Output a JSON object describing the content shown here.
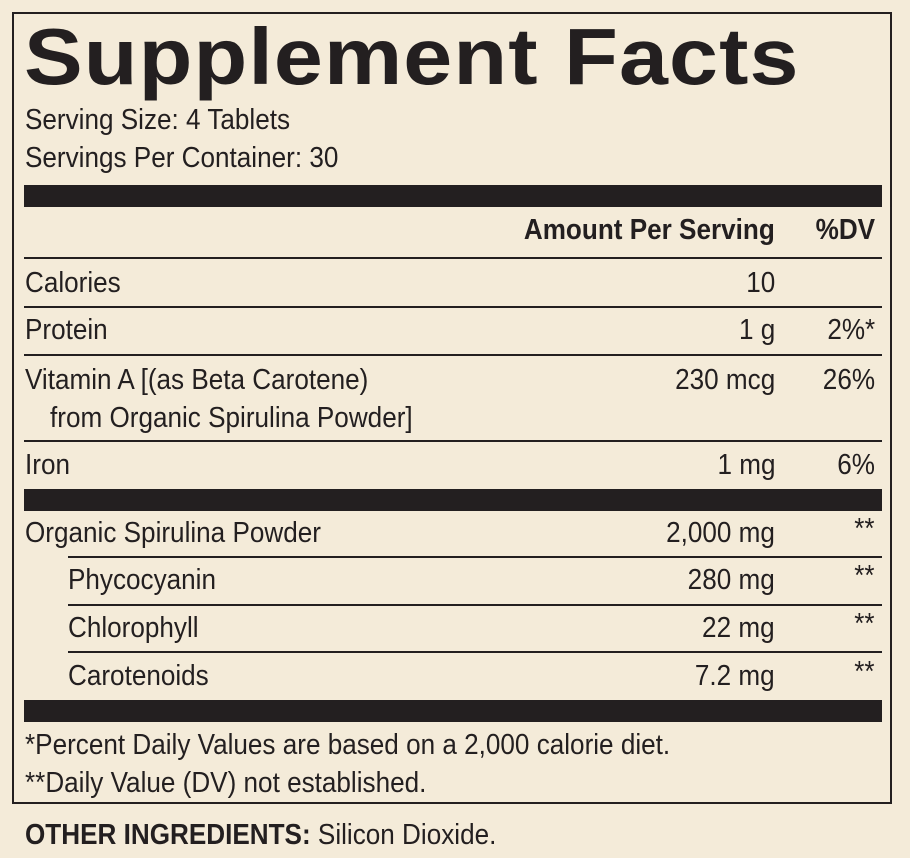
{
  "header": {
    "title": "Supplement Facts",
    "serving_size": "Serving Size: 4 Tablets",
    "servings_per_container": "Servings Per Container: 30"
  },
  "table": {
    "columns": [
      "Amount Per Serving",
      "%DV"
    ],
    "rows": [
      {
        "name": "Calories",
        "amount": "10"
      },
      {
        "name": "Protein",
        "amount": "1 g",
        "dv": "2%*"
      },
      {
        "name": "Vitamin A [(as Beta Carotene)",
        "name_continued": "from Organic Spirulina Powder]",
        "amount": "230 mcg",
        "dv": "26%"
      },
      {
        "name": "Iron",
        "amount": "1 mg",
        "dv": "6%"
      }
    ],
    "ingredients": [
      {
        "name": "Organic Spirulina Powder",
        "amount": "2,000 mg",
        "dv": "**"
      },
      {
        "name": "Phycocyanin",
        "amount": "280 mg",
        "dv": "**"
      },
      {
        "name": "Chlorophyll",
        "amount": "22 mg",
        "dv": "**"
      },
      {
        "name": "Carotenoids",
        "amount": "7.2 mg",
        "dv": "**"
      }
    ]
  },
  "footnotes": [
    "*Percent Daily Values are based on a 2,000 calorie diet.",
    "**Daily Value (DV) not established."
  ],
  "other_ingredients": {
    "label": "OTHER INGREDIENTS:",
    "text": "Silicon Dioxide."
  }
}
